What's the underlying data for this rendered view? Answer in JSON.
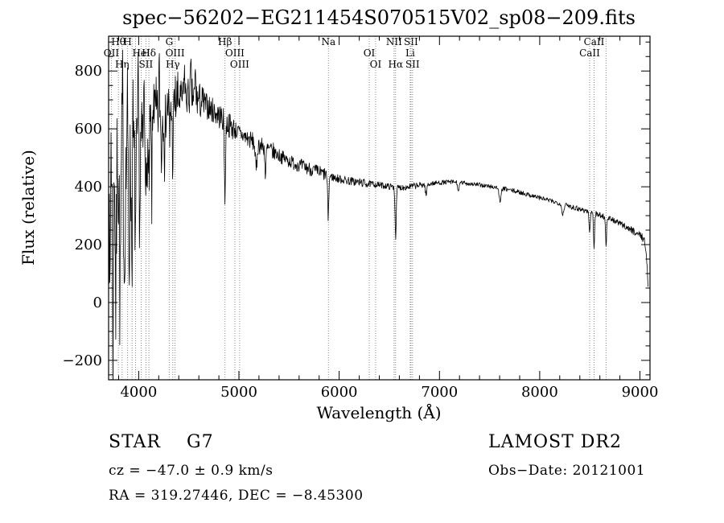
{
  "title": "spec−56202−EG211454S070515V02_sp08−209.fits",
  "footer": {
    "object_class": "STAR",
    "subclass": "G7",
    "survey": "LAMOST DR2",
    "cz": "cz = −47.0 ± 0.9 km/s",
    "obs_date": "Obs−Date: 20121001",
    "coords": "RA = 319.27446, DEC =  −8.45300"
  },
  "chart_data": {
    "type": "line",
    "title": "spec−56202−EG211454S070515V02_sp08−209.fits",
    "xlabel": "Wavelength (Å)",
    "ylabel": "Flux (relative)",
    "xlim": [
      3700,
      9100
    ],
    "ylim": [
      -267,
      920
    ],
    "xticks": [
      4000,
      5000,
      6000,
      7000,
      8000,
      9000
    ],
    "yticks": [
      -200,
      0,
      200,
      400,
      600,
      800
    ],
    "x_minor_step": 200,
    "y_minor_step": 50,
    "grid": false,
    "legend": "none",
    "line_color": "#000000",
    "marker_line_color": "#888888",
    "seed": 7,
    "samples": 1350,
    "spectral_lines": [
      {
        "label": "Hθ",
        "wl": 3798,
        "row": 0
      },
      {
        "label": "H",
        "wl": 3889,
        "row": 0
      },
      {
        "label": "G",
        "wl": 4305,
        "row": 0
      },
      {
        "label": "Hβ",
        "wl": 4861,
        "row": 0
      },
      {
        "label": "Na",
        "wl": 5893,
        "row": 0
      },
      {
        "label": "NII",
        "wl": 6548,
        "row": 0
      },
      {
        "label": "SII",
        "wl": 6716,
        "row": 0
      },
      {
        "label": "CaII",
        "wl": 8542,
        "row": 0
      },
      {
        "label": "OII",
        "wl": 3727,
        "row": 1
      },
      {
        "label": "HeI",
        "wl": 4026,
        "row": 1
      },
      {
        "label": "Hδ",
        "wl": 4102,
        "row": 1
      },
      {
        "label": "OIII",
        "wl": 4363,
        "row": 1
      },
      {
        "label": "OIII",
        "wl": 4959,
        "row": 1
      },
      {
        "label": "OI",
        "wl": 6300,
        "row": 1
      },
      {
        "label": "Li",
        "wl": 6708,
        "row": 1
      },
      {
        "label": "CaII",
        "wl": 8498,
        "row": 1
      },
      {
        "label": "Hη",
        "wl": 3835,
        "row": 2
      },
      {
        "label": "SII",
        "wl": 4072,
        "row": 2
      },
      {
        "label": "Hγ",
        "wl": 4340,
        "row": 2
      },
      {
        "label": "OIII",
        "wl": 5007,
        "row": 2
      },
      {
        "label": "OI",
        "wl": 6363,
        "row": 2
      },
      {
        "label": "Hα",
        "wl": 6563,
        "row": 2
      },
      {
        "label": "SII",
        "wl": 6731,
        "row": 2
      },
      {
        "label": "",
        "wl": 3934,
        "row": 2
      },
      {
        "label": "",
        "wl": 3969,
        "row": 2
      },
      {
        "label": "",
        "wl": 8662,
        "row": 1
      }
    ],
    "continuum": [
      [
        3700,
        360
      ],
      [
        3730,
        310
      ],
      [
        3760,
        330
      ],
      [
        3800,
        370
      ],
      [
        3840,
        405
      ],
      [
        3880,
        435
      ],
      [
        3920,
        465
      ],
      [
        3960,
        495
      ],
      [
        4000,
        530
      ],
      [
        4060,
        565
      ],
      [
        4120,
        600
      ],
      [
        4180,
        635
      ],
      [
        4240,
        660
      ],
      [
        4300,
        678
      ],
      [
        4360,
        692
      ],
      [
        4420,
        702
      ],
      [
        4480,
        712
      ],
      [
        4540,
        710
      ],
      [
        4600,
        698
      ],
      [
        4660,
        684
      ],
      [
        4720,
        668
      ],
      [
        4780,
        652
      ],
      [
        4840,
        634
      ],
      [
        4900,
        614
      ],
      [
        4960,
        596
      ],
      [
        5000,
        585
      ],
      [
        5080,
        568
      ],
      [
        5160,
        552
      ],
      [
        5240,
        538
      ],
      [
        5320,
        524
      ],
      [
        5400,
        508
      ],
      [
        5480,
        492
      ],
      [
        5560,
        480
      ],
      [
        5640,
        470
      ],
      [
        5720,
        460
      ],
      [
        5800,
        450
      ],
      [
        5880,
        440
      ],
      [
        5960,
        430
      ],
      [
        6040,
        424
      ],
      [
        6120,
        419
      ],
      [
        6200,
        415
      ],
      [
        6280,
        411
      ],
      [
        6360,
        408
      ],
      [
        6440,
        404
      ],
      [
        6520,
        400
      ],
      [
        6600,
        397
      ],
      [
        6680,
        399
      ],
      [
        6760,
        403
      ],
      [
        6840,
        407
      ],
      [
        6920,
        411
      ],
      [
        7000,
        414
      ],
      [
        7080,
        416
      ],
      [
        7160,
        416
      ],
      [
        7240,
        413
      ],
      [
        7320,
        410
      ],
      [
        7400,
        406
      ],
      [
        7480,
        402
      ],
      [
        7560,
        398
      ],
      [
        7640,
        393
      ],
      [
        7720,
        387
      ],
      [
        7800,
        381
      ],
      [
        7880,
        373
      ],
      [
        7960,
        366
      ],
      [
        8040,
        358
      ],
      [
        8120,
        350
      ],
      [
        8200,
        343
      ],
      [
        8280,
        335
      ],
      [
        8360,
        327
      ],
      [
        8440,
        319
      ],
      [
        8520,
        311
      ],
      [
        8600,
        302
      ],
      [
        8680,
        292
      ],
      [
        8760,
        280
      ],
      [
        8840,
        265
      ],
      [
        8920,
        250
      ],
      [
        8980,
        238
      ],
      [
        9020,
        228
      ],
      [
        9050,
        210
      ],
      [
        9070,
        130
      ],
      [
        9080,
        60
      ]
    ],
    "noise_regions": [
      [
        3700,
        3860,
        270
      ],
      [
        3860,
        3990,
        200
      ],
      [
        3990,
        4180,
        150
      ],
      [
        4180,
        4400,
        105
      ],
      [
        4400,
        4650,
        65
      ],
      [
        4650,
        4950,
        45
      ],
      [
        4950,
        5350,
        32
      ],
      [
        5350,
        5900,
        24
      ],
      [
        5900,
        6300,
        15
      ],
      [
        6300,
        6900,
        11
      ],
      [
        6900,
        7600,
        8
      ],
      [
        7600,
        8300,
        8
      ],
      [
        8300,
        8900,
        10
      ],
      [
        8900,
        9080,
        13
      ]
    ],
    "features": [
      [
        3934,
        300,
        6
      ],
      [
        3969,
        260,
        6
      ],
      [
        4101,
        220,
        6
      ],
      [
        4227,
        140,
        5
      ],
      [
        4340,
        180,
        6
      ],
      [
        4861,
        250,
        6
      ],
      [
        5172,
        95,
        8
      ],
      [
        5265,
        110,
        5
      ],
      [
        5890,
        140,
        6
      ],
      [
        6563,
        170,
        6
      ],
      [
        6867,
        40,
        7
      ],
      [
        7190,
        30,
        8
      ],
      [
        7605,
        50,
        9
      ],
      [
        8230,
        35,
        10
      ],
      [
        8498,
        80,
        5
      ],
      [
        8542,
        120,
        5
      ],
      [
        8662,
        100,
        5
      ],
      [
        3712,
        380,
        4
      ],
      [
        3745,
        480,
        4
      ],
      [
        3772,
        360,
        4
      ],
      [
        3815,
        420,
        4
      ],
      [
        3858,
        330,
        4
      ],
      [
        3905,
        300,
        4
      ],
      [
        4010,
        260,
        4
      ],
      [
        4078,
        280,
        4
      ],
      [
        4130,
        230,
        4
      ],
      [
        4260,
        180,
        4
      ],
      [
        4310,
        150,
        4
      ],
      [
        3725,
        -300,
        4
      ],
      [
        3755,
        -260,
        4
      ],
      [
        3790,
        -280,
        4
      ],
      [
        3838,
        -260,
        4
      ],
      [
        3885,
        -230,
        4
      ],
      [
        3942,
        -220,
        4
      ],
      [
        3995,
        -200,
        4
      ],
      [
        4055,
        -190,
        4
      ],
      [
        4150,
        -170,
        4
      ],
      [
        4205,
        -150,
        4
      ],
      [
        4455,
        -110,
        4
      ],
      [
        4520,
        -95,
        4
      ],
      [
        4565,
        -85,
        4
      ]
    ]
  }
}
